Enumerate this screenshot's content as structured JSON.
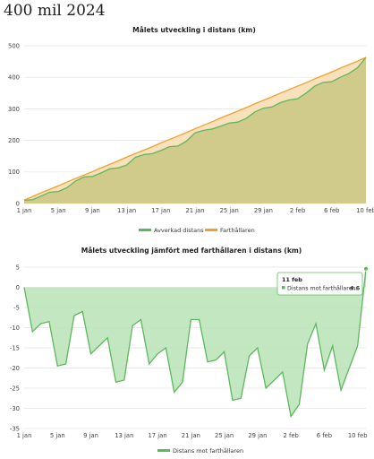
{
  "page": {
    "title": "400 mil 2024"
  },
  "chart_data": [
    {
      "type": "area",
      "title": "Målets utveckling i distans (km)",
      "x_labels": [
        "1 jan",
        "5 jan",
        "9 jan",
        "13 jan",
        "17 jan",
        "21 jan",
        "25 jan",
        "29 jan",
        "2 feb",
        "6 feb",
        "10 feb"
      ],
      "ylim": [
        0,
        500
      ],
      "yticks": [
        0,
        100,
        200,
        300,
        400,
        500
      ],
      "grid": true,
      "legend_position": "bottom",
      "series": [
        {
          "name": "Avverkad distans",
          "color": "#5cb85c",
          "fill": "#c9c583",
          "values": [
            10,
            12,
            24,
            36,
            38,
            50,
            71,
            84,
            86,
            97,
            110,
            113,
            122,
            146,
            155,
            158,
            168,
            180,
            182,
            198,
            224,
            232,
            236,
            245,
            255,
            258,
            270,
            290,
            302,
            306,
            320,
            328,
            332,
            350,
            372,
            384,
            386,
            400,
            412,
            430,
            463
          ]
        },
        {
          "name": "Farthållaren",
          "color": "#f0a030",
          "fill": "#f8dcb0",
          "values": [
            11,
            22,
            34,
            45,
            56,
            68,
            79,
            90,
            101,
            113,
            124,
            135,
            147,
            158,
            169,
            180,
            192,
            203,
            214,
            225,
            237,
            248,
            259,
            271,
            282,
            293,
            304,
            316,
            327,
            338,
            350,
            361,
            372,
            383,
            395,
            406,
            417,
            429,
            440,
            451,
            463
          ]
        }
      ]
    },
    {
      "type": "area",
      "title": "Målets utveckling jämfört med farthållaren i distans (km)",
      "x_labels": [
        "1 jan",
        "5 jan",
        "9 jan",
        "13 jan",
        "17 jan",
        "21 jan",
        "25 jan",
        "29 jan",
        "2 feb",
        "6 feb",
        "10 feb"
      ],
      "ylim": [
        -35,
        5
      ],
      "yticks": [
        5,
        0,
        -5,
        -10,
        -15,
        -20,
        -25,
        -30,
        -35
      ],
      "grid": true,
      "legend_position": "bottom",
      "series": [
        {
          "name": "Distans mot farthållaren",
          "color": "#5cb85c",
          "fill": "#b9e3b5",
          "values": [
            0,
            -11,
            -9,
            -8.5,
            -19.5,
            -19,
            -7,
            -6,
            -16.5,
            -14.5,
            -12.5,
            -23.5,
            -23,
            -9.5,
            -8,
            -19,
            -16.5,
            -15,
            -26,
            -23.5,
            -8,
            -8,
            -18.5,
            -18,
            -16,
            -28,
            -27.5,
            -17,
            -15,
            -25,
            -23,
            -21,
            -32,
            -29,
            -14,
            -9,
            -20.5,
            -14.5,
            -25.5,
            -20,
            -14.5,
            4.6
          ]
        }
      ],
      "tooltip": {
        "title": "11 feb",
        "label": "Distans mot farthållaren:",
        "value": "4.6"
      }
    }
  ]
}
